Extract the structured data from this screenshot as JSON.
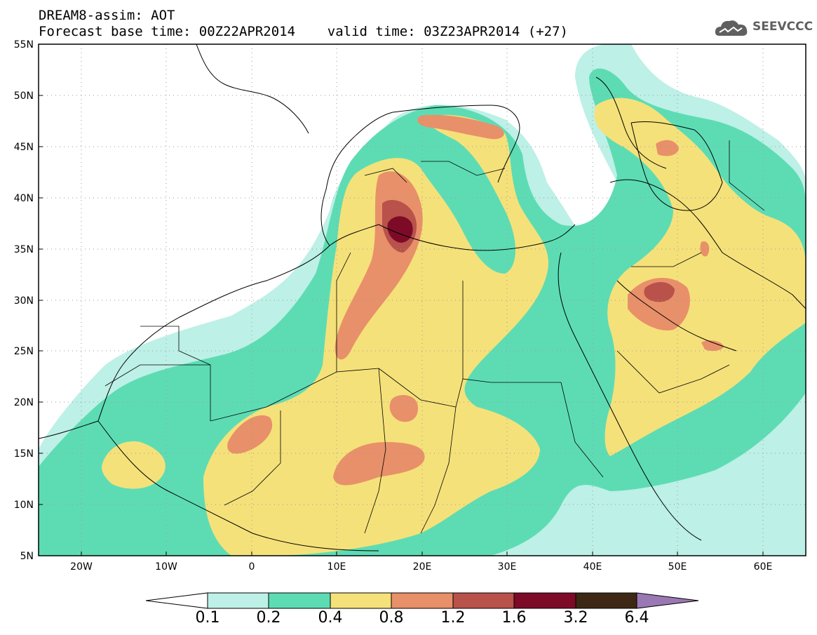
{
  "title": {
    "line1": "DREAM8-assim: AOT",
    "line2": "Forecast base time: 00Z22APR2014    valid time: 03Z23APR2014 (+27)"
  },
  "logo": {
    "text": "SEEVCCC",
    "icon": "cloud-logo-icon",
    "color": "#606060"
  },
  "map": {
    "lat_labels": [
      "55N",
      "50N",
      "45N",
      "40N",
      "35N",
      "30N",
      "25N",
      "20N",
      "15N",
      "10N",
      "5N"
    ],
    "lon_labels": [
      "20W",
      "10W",
      "0",
      "10E",
      "20E",
      "30E",
      "40E",
      "50E",
      "60E"
    ],
    "lat_range": [
      5,
      55
    ],
    "lon_range": [
      -25,
      65
    ],
    "grid": "dotted"
  },
  "colorbar": {
    "labels": [
      "0.1",
      "0.2",
      "0.4",
      "0.8",
      "1.2",
      "1.6",
      "3.2",
      "6.4"
    ],
    "colors": [
      "#ffffff",
      "#bdf0e6",
      "#5ddcb4",
      "#f5e17a",
      "#e8906a",
      "#b8524a",
      "#7d0b28",
      "#3c2814",
      "#9a78b4"
    ]
  },
  "fields": {
    "level_colors": {
      "l1": "#bdf0e6",
      "l2": "#5ddcb4",
      "l3": "#f5e17a",
      "l4": "#e8906a",
      "l5": "#b8524a",
      "l6": "#7d0b28"
    }
  }
}
